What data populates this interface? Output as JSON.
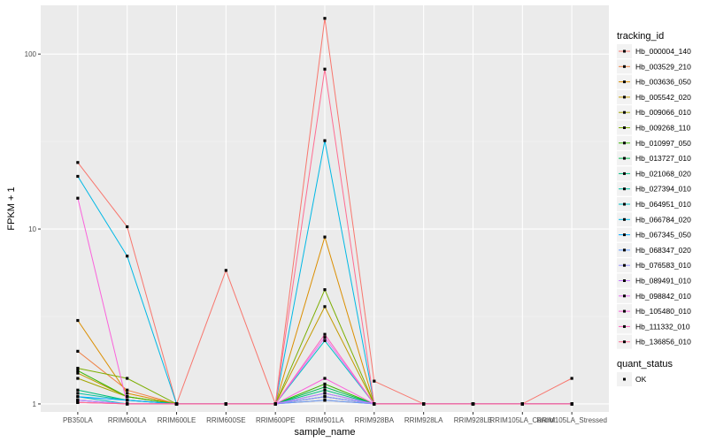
{
  "chart_data": {
    "type": "line",
    "title": "",
    "xlabel": "sample_name",
    "ylabel": "FPKM + 1",
    "y_scale": "log10",
    "ylim": [
      0.9,
      190
    ],
    "y_ticks": [
      1,
      10,
      100
    ],
    "y_tick_labels": [
      "1",
      "10",
      "100"
    ],
    "grid": true,
    "legend_placement": "right",
    "x": [
      "PB350LA",
      "RRIM600LA",
      "RRIM600LE",
      "RRIM600SE",
      "RRIM600PE",
      "RRIM901LA",
      "RRIM928BA",
      "RRIM928LA",
      "RRIM928LE",
      "RRIM105LA_Control",
      "RRIM105LA_Stressed"
    ],
    "x_tick_labels": [
      "PB350LA",
      "RRIM600LA",
      "RRIM600LE",
      "RRIM600SE",
      "RRIM600PE",
      "RRIM901LA",
      "RRIM928BA",
      "RRIM928LA",
      "RRIM928LE",
      "RRIM105LA_Control",
      "RRIM105LA_Stressed"
    ],
    "legend_title": "tracking_id",
    "series": [
      {
        "name": "Hb_000004_140",
        "color": "#F8766D",
        "values": [
          24,
          10.3,
          1,
          5.8,
          1,
          160,
          1.35,
          1,
          1,
          1,
          1.4
        ]
      },
      {
        "name": "Hb_003529_210",
        "color": "#EE8044",
        "values": [
          2.0,
          1.2,
          1,
          1,
          1,
          1.05,
          1,
          1,
          1,
          1,
          1
        ]
      },
      {
        "name": "Hb_003636_050",
        "color": "#DB8E00",
        "values": [
          3.0,
          1.15,
          1,
          1,
          1,
          9.0,
          1,
          1,
          1,
          1,
          1
        ]
      },
      {
        "name": "Hb_005542_020",
        "color": "#C49A00",
        "values": [
          1.5,
          1.1,
          1,
          1,
          1,
          3.6,
          1,
          1,
          1,
          1,
          1
        ]
      },
      {
        "name": "Hb_009066_010",
        "color": "#A3A500",
        "values": [
          1.4,
          1.1,
          1,
          1,
          1,
          1.1,
          1,
          1,
          1,
          1,
          1
        ]
      },
      {
        "name": "Hb_009268_110",
        "color": "#7CAE00",
        "values": [
          1.6,
          1.4,
          1,
          1,
          1,
          4.5,
          1,
          1,
          1,
          1,
          1
        ]
      },
      {
        "name": "Hb_010997_050",
        "color": "#39B600",
        "values": [
          1.55,
          1.1,
          1,
          1,
          1,
          1.3,
          1,
          1,
          1,
          1,
          1
        ]
      },
      {
        "name": "Hb_013727_010",
        "color": "#00BB4E",
        "values": [
          1.05,
          1,
          1,
          1,
          1,
          1.25,
          1,
          1,
          1,
          1,
          1
        ]
      },
      {
        "name": "Hb_021068_020",
        "color": "#00BF7D",
        "values": [
          1.2,
          1.05,
          1,
          1,
          1,
          1.2,
          1,
          1,
          1,
          1,
          1
        ]
      },
      {
        "name": "Hb_027394_010",
        "color": "#00C1A3",
        "values": [
          1.15,
          1.05,
          1,
          1,
          1,
          1.15,
          1,
          1,
          1,
          1,
          1
        ]
      },
      {
        "name": "Hb_064951_010",
        "color": "#00BFC4",
        "values": [
          1.1,
          1,
          1,
          1,
          1,
          2.3,
          1,
          1,
          1,
          1,
          1
        ]
      },
      {
        "name": "Hb_066784_020",
        "color": "#00B8E5",
        "values": [
          20,
          7.0,
          1,
          1,
          1,
          32,
          1,
          1,
          1,
          1,
          1
        ]
      },
      {
        "name": "Hb_067345_050",
        "color": "#00A9FF",
        "values": [
          1.1,
          1.05,
          1,
          1,
          1,
          1.1,
          1,
          1,
          1,
          1,
          1
        ]
      },
      {
        "name": "Hb_068347_020",
        "color": "#619CFF",
        "values": [
          1.05,
          1,
          1,
          1,
          1,
          1.05,
          1,
          1,
          1,
          1,
          1
        ]
      },
      {
        "name": "Hb_076583_010",
        "color": "#9590FF",
        "values": [
          1.05,
          1,
          1,
          1,
          1,
          1.1,
          1,
          1,
          1,
          1,
          1
        ]
      },
      {
        "name": "Hb_089491_010",
        "color": "#C77CFF",
        "values": [
          1.05,
          1,
          1,
          1,
          1,
          1.15,
          1,
          1,
          1,
          1,
          1
        ]
      },
      {
        "name": "Hb_098842_010",
        "color": "#E76BF3",
        "values": [
          1.02,
          1,
          1,
          1,
          1,
          2.4,
          1,
          1,
          1,
          1,
          1
        ]
      },
      {
        "name": "Hb_105480_010",
        "color": "#FA62DB",
        "values": [
          15,
          1,
          1,
          1,
          1,
          1.4,
          1,
          1,
          1,
          1,
          1
        ]
      },
      {
        "name": "Hb_111332_010",
        "color": "#FF62BC",
        "values": [
          1.02,
          1,
          1,
          1,
          1,
          2.5,
          1,
          1,
          1,
          1,
          1
        ]
      },
      {
        "name": "Hb_136856_010",
        "color": "#FF6C91",
        "values": [
          1.02,
          1,
          1,
          1,
          1,
          82,
          1,
          1,
          1,
          1,
          1
        ]
      }
    ],
    "shape_legend": {
      "title": "quant_status",
      "items": [
        "OK"
      ]
    }
  }
}
